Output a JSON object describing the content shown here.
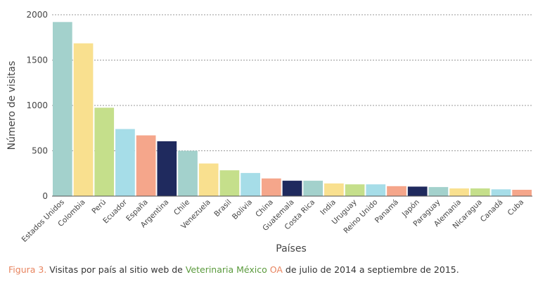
{
  "chart_data": {
    "type": "bar",
    "xlabel": "Países",
    "ylabel": "Número de visitas",
    "ylim": [
      0,
      2000
    ],
    "yticks": [
      "0",
      "500",
      "1000",
      "1500",
      "2000"
    ],
    "ytick_values": [
      0,
      500,
      1000,
      1500,
      2000
    ],
    "grid": true,
    "categories": [
      "Estados Unidos",
      "Colombia",
      "Perú",
      "Ecuador",
      "España",
      "Argentina",
      "Chile",
      "Venezuela",
      "Brasil",
      "Bolivia",
      "China",
      "Guatemala",
      "Costa Rica",
      "India",
      "Uruguay",
      "Reino Unido",
      "Panamá",
      "Japón",
      "Paraguay",
      "Alemania",
      "Nicaragua",
      "Canadá",
      "Cuba"
    ],
    "values": [
      1920,
      1685,
      975,
      740,
      670,
      605,
      500,
      360,
      285,
      255,
      195,
      170,
      170,
      140,
      130,
      130,
      110,
      105,
      100,
      85,
      85,
      75,
      70
    ],
    "colors": [
      "#a3d1cc",
      "#f9e08f",
      "#c5df8b",
      "#a6dde8",
      "#f5a68b",
      "#1f2a5e",
      "#a3d1cc",
      "#f9e08f",
      "#c5df8b",
      "#a6dde8",
      "#f5a68b",
      "#1f2a5e",
      "#a3d1cc",
      "#f9e08f",
      "#c5df8b",
      "#a6dde8",
      "#f5a68b",
      "#1f2a5e",
      "#a3d1cc",
      "#f9e08f",
      "#c5df8b",
      "#a6dde8",
      "#f5a68b"
    ]
  },
  "caption": {
    "figure_label": "Figura 3.",
    "text_before": " Visitas por país al sitio web de ",
    "journal_name": "Veterinaria México",
    "journal_suffix": " OA",
    "text_after": " de julio de 2014 a septiembre de 2015."
  }
}
